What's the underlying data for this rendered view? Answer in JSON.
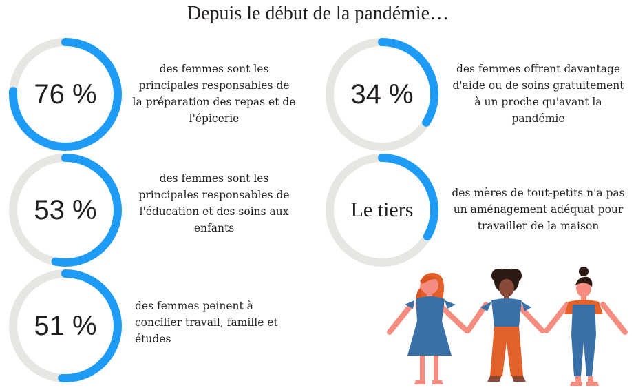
{
  "title": "Depuis le début de la pandémie…",
  "colors": {
    "ring_track": "#e6e6e3",
    "ring_fill": "#1e9cf5",
    "text": "#231f20"
  },
  "stats": [
    {
      "value_label": "76 %",
      "fraction": 0.76,
      "lines": [
        "des femmes sont les",
        "principales responsables de",
        "la préparation des repas et de",
        "l'épicerie"
      ]
    },
    {
      "value_label": "53 %",
      "fraction": 0.53,
      "lines": [
        "des femmes sont les",
        "principales responsables de",
        "l'éducation et des soins aux",
        "enfants"
      ]
    },
    {
      "value_label": "51 %",
      "fraction": 0.51,
      "lines": [
        "des femmes peinent à",
        "concilier travail, famille et",
        "études"
      ]
    },
    {
      "value_label": "34 %",
      "fraction": 0.34,
      "lines": [
        "des femmes offrent davantage",
        "d'aide ou de soins gratuitement",
        "à un proche qu'avant la",
        "pandémie"
      ]
    },
    {
      "value_label": "Le tiers",
      "fraction": 0.3333,
      "lines": [
        "des mères de tout-petits n'a pas",
        "un aménagement adéquat pour",
        "travailler de la maison"
      ]
    }
  ]
}
